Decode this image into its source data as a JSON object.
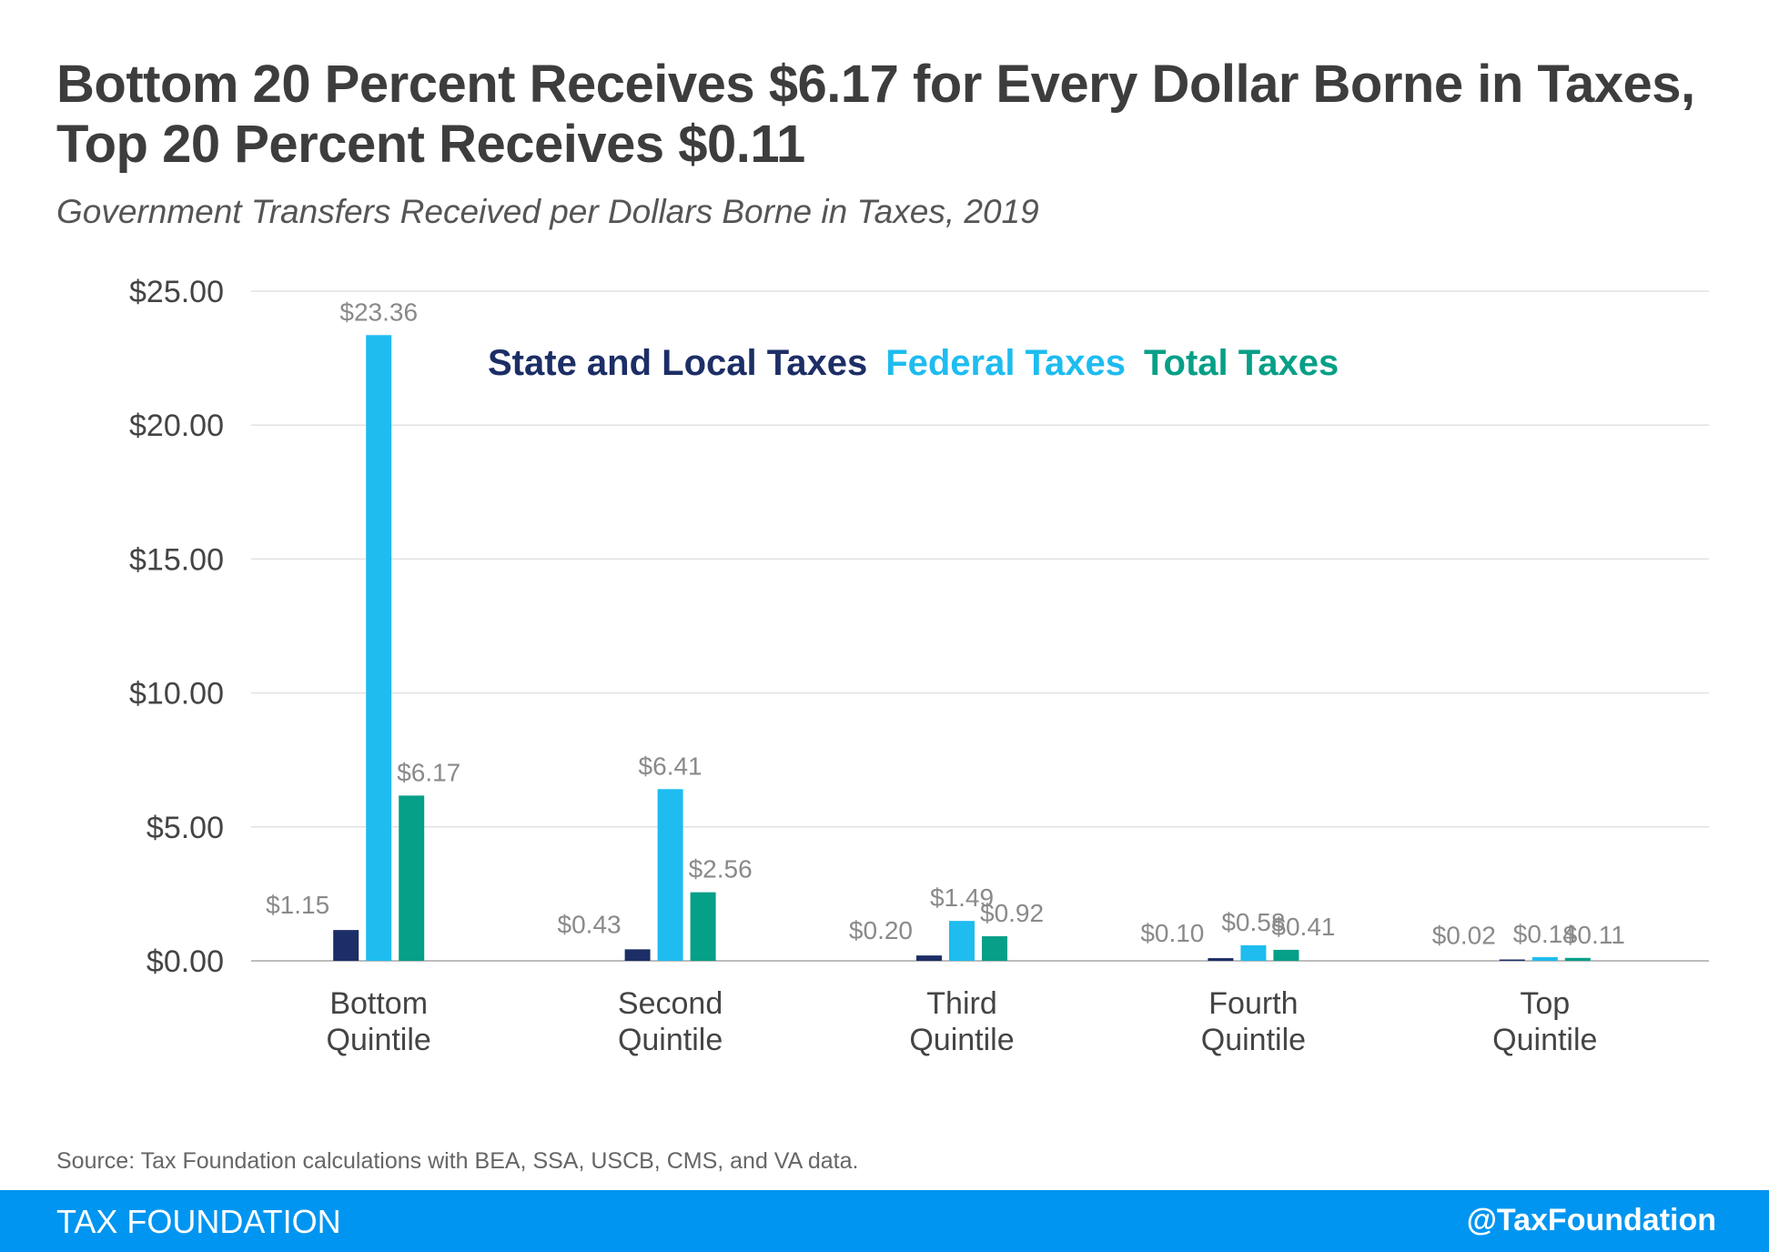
{
  "header": {
    "title": "Bottom 20 Percent Receives $6.17 for Every Dollar Borne in Taxes, Top 20 Percent Receives $0.11",
    "subtitle": "Government Transfers Received per Dollars Borne in Taxes, 2019"
  },
  "chart_data": {
    "type": "bar",
    "categories": [
      [
        "Bottom",
        "Quintile"
      ],
      [
        "Second",
        "Quintile"
      ],
      [
        "Third",
        "Quintile"
      ],
      [
        "Fourth",
        "Quintile"
      ],
      [
        "Top",
        "Quintile"
      ]
    ],
    "series": [
      {
        "name": "State and Local Taxes",
        "color": "#1c2e66",
        "values": [
          1.15,
          0.43,
          0.2,
          0.1,
          0.02
        ],
        "labels": [
          "$1.15",
          "$0.43",
          "$0.20",
          "$0.10",
          "$0.02"
        ]
      },
      {
        "name": "Federal Taxes",
        "color": "#1ebcef",
        "values": [
          23.36,
          6.41,
          1.49,
          0.58,
          0.14
        ],
        "labels": [
          "$23.36",
          "$6.41",
          "$1.49",
          "$0.58",
          "$0.14"
        ]
      },
      {
        "name": "Total Taxes",
        "color": "#069f87",
        "values": [
          6.17,
          2.56,
          0.92,
          0.41,
          0.11
        ],
        "labels": [
          "$6.17",
          "$2.56",
          "$0.92",
          "$0.41",
          "$0.11"
        ]
      }
    ],
    "ylim": [
      0,
      25
    ],
    "yticks": [
      0,
      5,
      10,
      15,
      20,
      25
    ],
    "ytick_labels": [
      "$0.00",
      "$5.00",
      "$10.00",
      "$15.00",
      "$20.00",
      "$25.00"
    ],
    "grid": true,
    "legend_position": "top"
  },
  "footer": {
    "source": "Source: Tax Foundation calculations with BEA, SSA, USCB, CMS, and VA data.",
    "brand": "TAX FOUNDATION",
    "handle": "@TaxFoundation",
    "bar_color": "#0095f0"
  }
}
